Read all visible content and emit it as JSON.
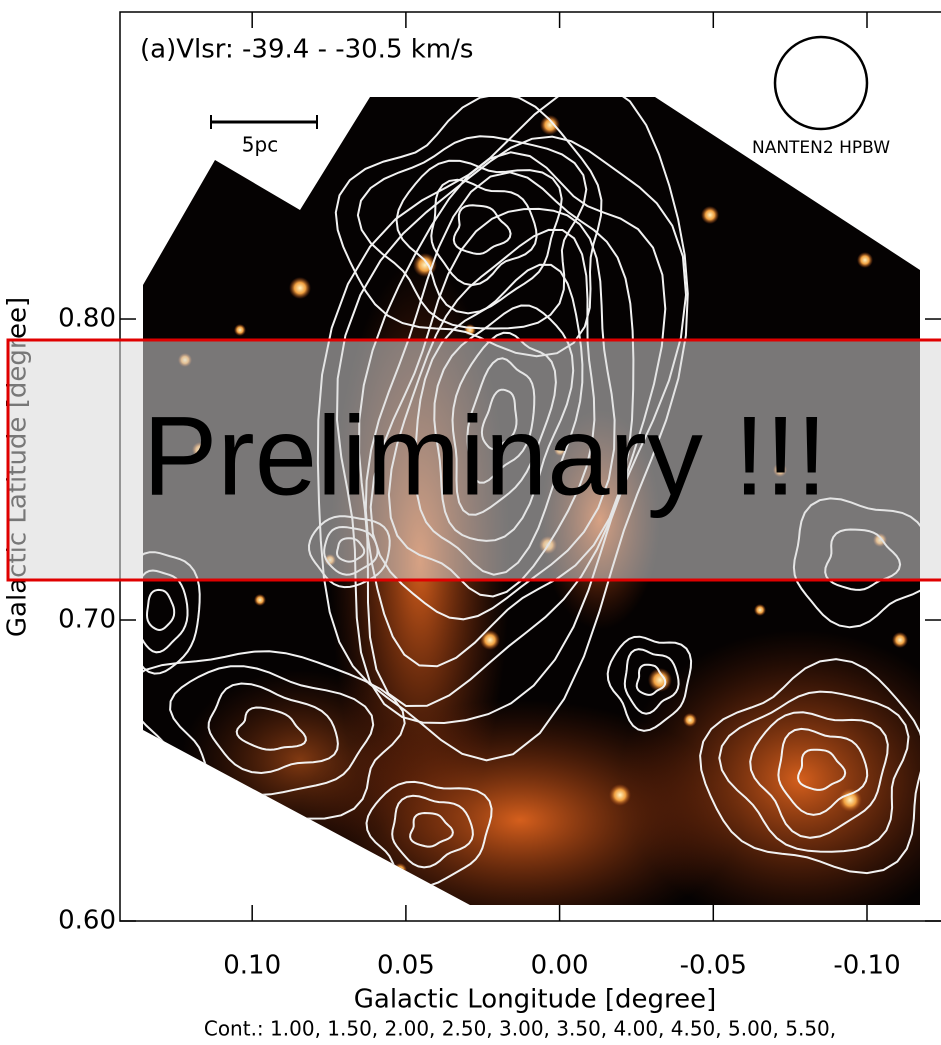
{
  "chart_data": {
    "type": "image-map",
    "title": "(a)Vlsr: -39.4 - -30.5 km/s",
    "scale_bar_label": "5pc",
    "beam_label": "NANTEN2 HPBW",
    "x_label": "Galactic Longitude [degree]",
    "y_label": "Galactic Latitude [degree]",
    "footer": "Cont.: 1.00, 1.50, 2.00, 2.50, 3.00, 3.50, 4.00, 4.50, 5.00, 5.50,",
    "watermark": "Preliminary !!!",
    "xlim": [
      0.143,
      -0.127
    ],
    "ylim": [
      0.6,
      0.902
    ],
    "xticks": [
      {
        "value": 0.1,
        "label": "0.10"
      },
      {
        "value": 0.05,
        "label": "0.05"
      },
      {
        "value": 0,
        "label": "0.00"
      },
      {
        "value": -0.05,
        "label": "-0.05"
      },
      {
        "value": -0.1,
        "label": "-0.10"
      }
    ],
    "yticks": [
      {
        "value": 0.6,
        "label": "0.60"
      },
      {
        "value": 0.7,
        "label": "0.70"
      },
      {
        "value": 0.8,
        "label": "0.80"
      }
    ]
  }
}
